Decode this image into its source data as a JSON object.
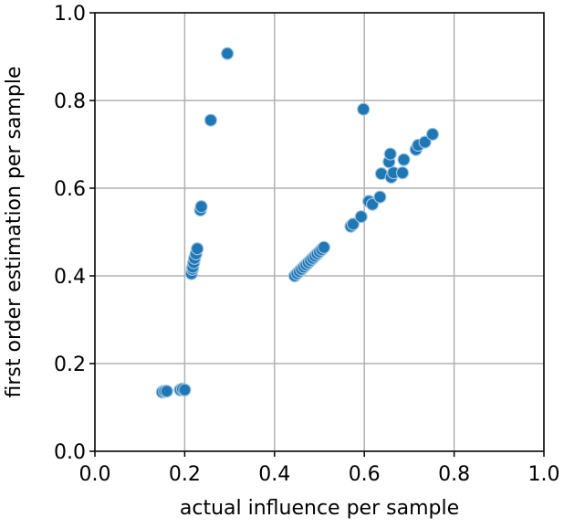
{
  "chart_data": {
    "type": "scatter",
    "xlabel": "actual influence per sample",
    "ylabel": "first order estimation per sample",
    "xlim": [
      0,
      1
    ],
    "ylim": [
      0,
      1
    ],
    "xticks": [
      {
        "value": 0,
        "label": "0.0"
      },
      0.2,
      0.4,
      0.6,
      0.8,
      {
        "value": 1,
        "label": "1.0"
      }
    ],
    "yticks": [
      {
        "value": 0,
        "label": "0.0"
      },
      0.2,
      0.4,
      0.6,
      0.8,
      {
        "value": 1,
        "label": "1.0"
      }
    ],
    "grid": true,
    "color": "#1f77b4",
    "x": [
      0.15,
      0.155,
      0.16,
      0.19,
      0.195,
      0.2,
      0.215,
      0.217,
      0.218,
      0.22,
      0.222,
      0.225,
      0.228,
      0.235,
      0.237,
      0.258,
      0.295,
      0.445,
      0.45,
      0.455,
      0.46,
      0.465,
      0.47,
      0.475,
      0.48,
      0.485,
      0.49,
      0.495,
      0.5,
      0.505,
      0.51,
      0.57,
      0.575,
      0.593,
      0.598,
      0.61,
      0.618,
      0.635,
      0.638,
      0.655,
      0.658,
      0.66,
      0.665,
      0.685,
      0.688,
      0.715,
      0.72,
      0.735,
      0.752
    ],
    "y": [
      0.135,
      0.137,
      0.137,
      0.14,
      0.142,
      0.14,
      0.405,
      0.415,
      0.42,
      0.43,
      0.44,
      0.45,
      0.462,
      0.55,
      0.558,
      0.755,
      0.907,
      0.4,
      0.405,
      0.41,
      0.415,
      0.42,
      0.425,
      0.43,
      0.435,
      0.44,
      0.445,
      0.45,
      0.455,
      0.46,
      0.465,
      0.513,
      0.518,
      0.535,
      0.78,
      0.57,
      0.563,
      0.58,
      0.633,
      0.66,
      0.678,
      0.625,
      0.635,
      0.635,
      0.665,
      0.688,
      0.698,
      0.705,
      0.723
    ]
  }
}
